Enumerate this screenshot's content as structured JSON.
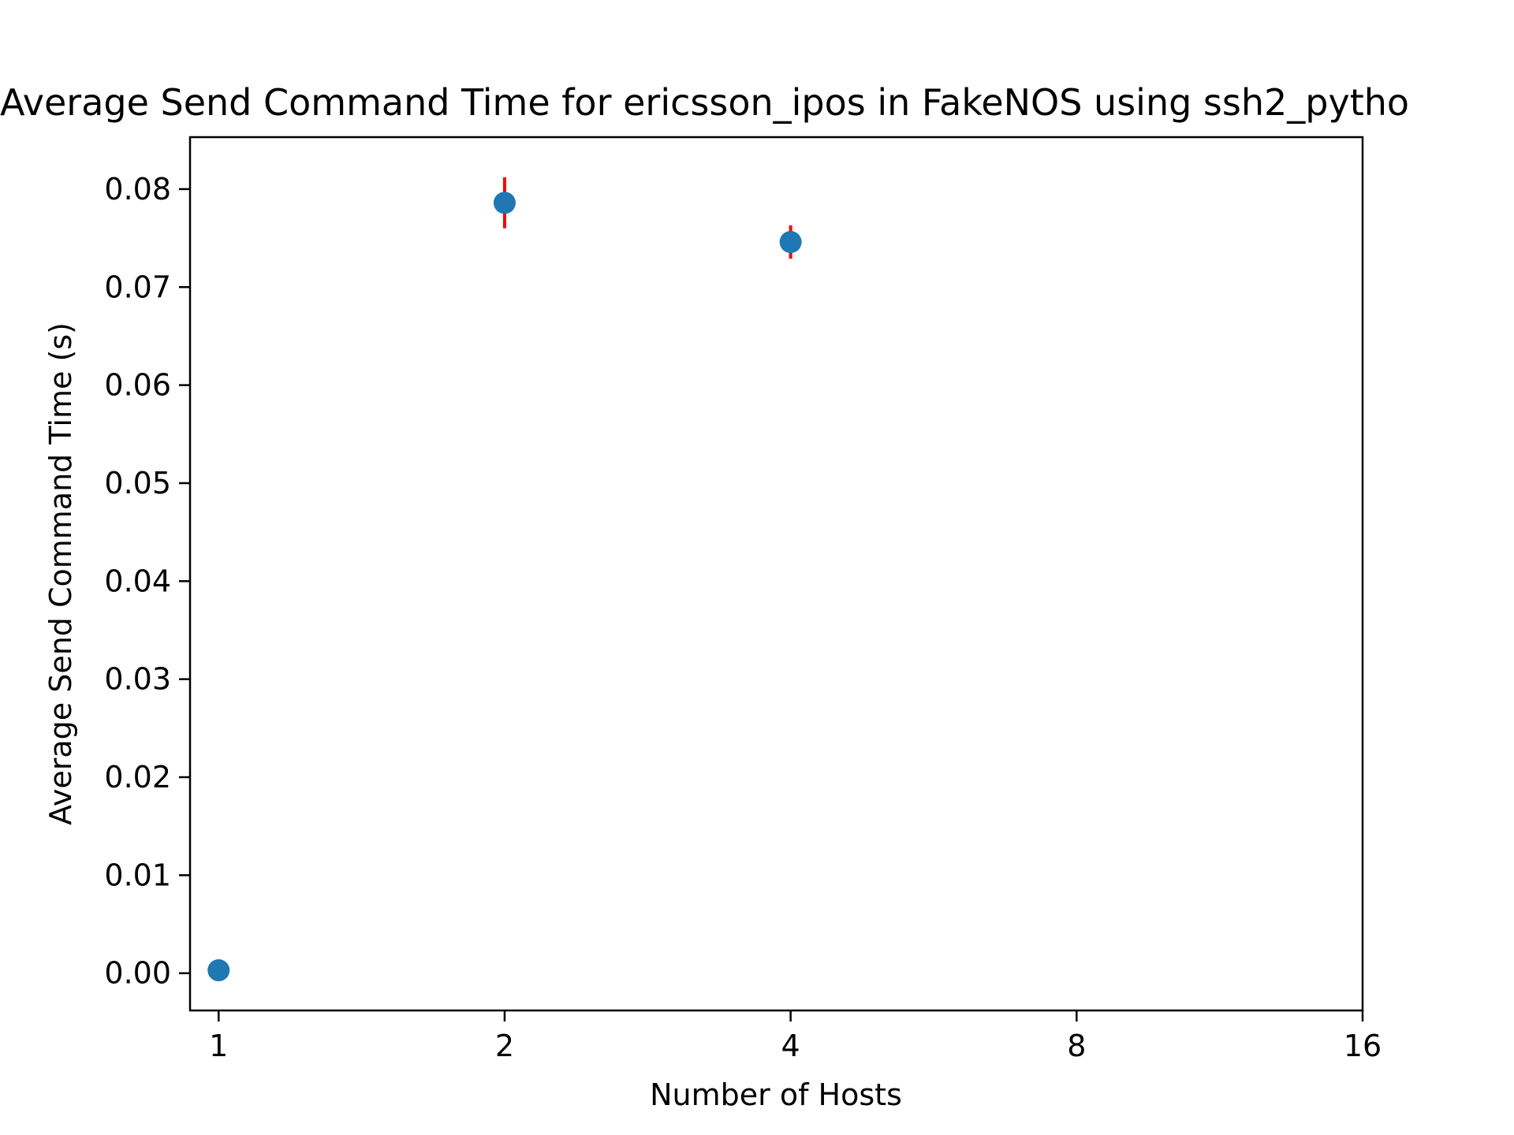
{
  "chart_data": {
    "type": "scatter",
    "title": "Average Send Command Time for ericsson_ipos in FakeNOS using ssh2_pytho",
    "xlabel": "Number of Hosts",
    "ylabel": "Average Send Command Time (s)",
    "x_scale": "log2",
    "xlim": [
      1,
      16
    ],
    "ylim": [
      -0.0038,
      0.0853
    ],
    "x_ticks": [
      1,
      2,
      4,
      8,
      16
    ],
    "x_tick_labels": [
      "1",
      "2",
      "4",
      "8",
      "16"
    ],
    "y_ticks": [
      0.0,
      0.01,
      0.02,
      0.03,
      0.04,
      0.05,
      0.06,
      0.07,
      0.08
    ],
    "y_tick_labels": [
      "0.00",
      "0.01",
      "0.02",
      "0.03",
      "0.04",
      "0.05",
      "0.06",
      "0.07",
      "0.08"
    ],
    "grid": false,
    "series": [
      {
        "x": [
          1,
          2,
          4
        ],
        "y": [
          0.0003,
          0.0786,
          0.0746
        ],
        "error": [
          0.0,
          0.0026,
          0.0017
        ],
        "marker_color": "#1f77b4",
        "error_color": "#ff0000"
      }
    ]
  }
}
